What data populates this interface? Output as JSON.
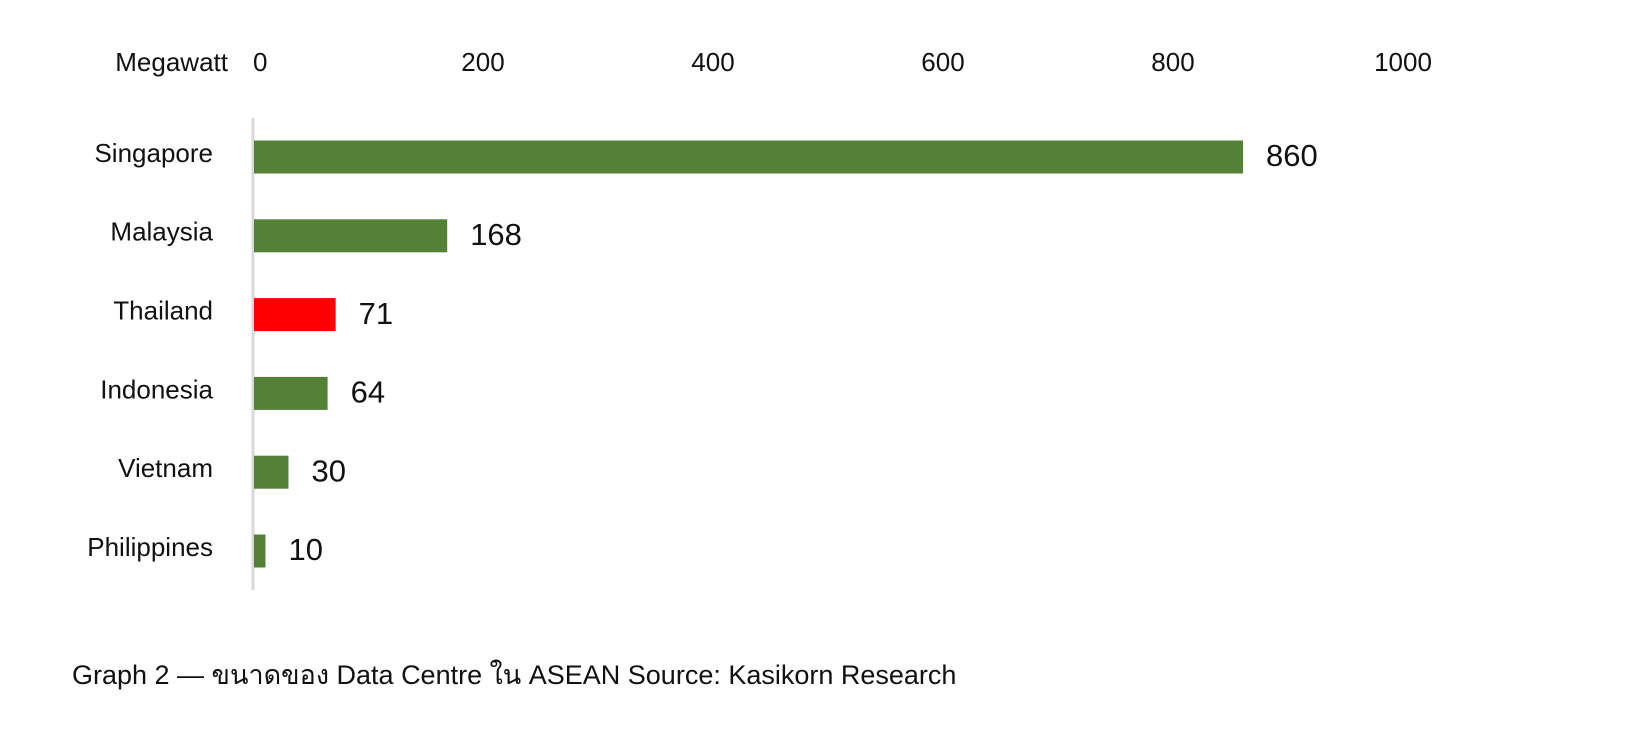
{
  "chart_data": {
    "type": "bar",
    "orientation": "horizontal",
    "x_label": "Megawatt",
    "categories": [
      "Singapore",
      "Malaysia",
      "Thailand",
      "Indonesia",
      "Vietnam",
      "Philippines"
    ],
    "values": [
      860,
      168,
      71,
      64,
      30,
      10
    ],
    "colors": [
      "#538135",
      "#538135",
      "#ff0000",
      "#538135",
      "#538135",
      "#538135"
    ],
    "xlim": [
      0,
      1000
    ],
    "xticks": [
      0,
      200,
      400,
      600,
      800,
      1000
    ],
    "grid": false,
    "caption": "Graph 2 — ขนาดของ Data Centre ใน ASEAN Source: Kasikorn Research"
  }
}
